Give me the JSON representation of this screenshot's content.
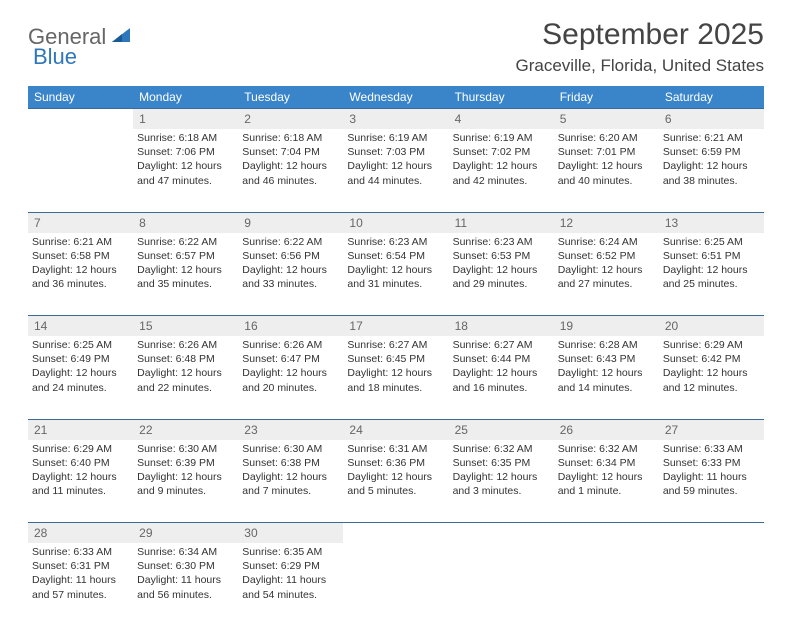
{
  "branding": {
    "logo_text_1": "General",
    "logo_text_2": "Blue",
    "logo_color_1": "#666666",
    "logo_color_2": "#2f77bb"
  },
  "header": {
    "month_title": "September 2025",
    "location": "Graceville, Florida, United States"
  },
  "colors": {
    "header_bg": "#3a85c9",
    "header_fg": "#ffffff",
    "daynum_bg": "#eeeeee",
    "daynum_fg": "#666666",
    "cell_border": "#3a6b96",
    "text": "#333333",
    "background": "#ffffff"
  },
  "typography": {
    "title_fontsize": 30,
    "location_fontsize": 17,
    "dayheader_fontsize": 12,
    "daynum_fontsize": 12,
    "body_fontsize": 10.5,
    "font_family": "Arial"
  },
  "calendar": {
    "type": "table",
    "day_names": [
      "Sunday",
      "Monday",
      "Tuesday",
      "Wednesday",
      "Thursday",
      "Friday",
      "Saturday"
    ],
    "weeks": [
      [
        {
          "day": "",
          "sunrise": "",
          "sunset": "",
          "daylight1": "",
          "daylight2": ""
        },
        {
          "day": "1",
          "sunrise": "Sunrise: 6:18 AM",
          "sunset": "Sunset: 7:06 PM",
          "daylight1": "Daylight: 12 hours",
          "daylight2": "and 47 minutes."
        },
        {
          "day": "2",
          "sunrise": "Sunrise: 6:18 AM",
          "sunset": "Sunset: 7:04 PM",
          "daylight1": "Daylight: 12 hours",
          "daylight2": "and 46 minutes."
        },
        {
          "day": "3",
          "sunrise": "Sunrise: 6:19 AM",
          "sunset": "Sunset: 7:03 PM",
          "daylight1": "Daylight: 12 hours",
          "daylight2": "and 44 minutes."
        },
        {
          "day": "4",
          "sunrise": "Sunrise: 6:19 AM",
          "sunset": "Sunset: 7:02 PM",
          "daylight1": "Daylight: 12 hours",
          "daylight2": "and 42 minutes."
        },
        {
          "day": "5",
          "sunrise": "Sunrise: 6:20 AM",
          "sunset": "Sunset: 7:01 PM",
          "daylight1": "Daylight: 12 hours",
          "daylight2": "and 40 minutes."
        },
        {
          "day": "6",
          "sunrise": "Sunrise: 6:21 AM",
          "sunset": "Sunset: 6:59 PM",
          "daylight1": "Daylight: 12 hours",
          "daylight2": "and 38 minutes."
        }
      ],
      [
        {
          "day": "7",
          "sunrise": "Sunrise: 6:21 AM",
          "sunset": "Sunset: 6:58 PM",
          "daylight1": "Daylight: 12 hours",
          "daylight2": "and 36 minutes."
        },
        {
          "day": "8",
          "sunrise": "Sunrise: 6:22 AM",
          "sunset": "Sunset: 6:57 PM",
          "daylight1": "Daylight: 12 hours",
          "daylight2": "and 35 minutes."
        },
        {
          "day": "9",
          "sunrise": "Sunrise: 6:22 AM",
          "sunset": "Sunset: 6:56 PM",
          "daylight1": "Daylight: 12 hours",
          "daylight2": "and 33 minutes."
        },
        {
          "day": "10",
          "sunrise": "Sunrise: 6:23 AM",
          "sunset": "Sunset: 6:54 PM",
          "daylight1": "Daylight: 12 hours",
          "daylight2": "and 31 minutes."
        },
        {
          "day": "11",
          "sunrise": "Sunrise: 6:23 AM",
          "sunset": "Sunset: 6:53 PM",
          "daylight1": "Daylight: 12 hours",
          "daylight2": "and 29 minutes."
        },
        {
          "day": "12",
          "sunrise": "Sunrise: 6:24 AM",
          "sunset": "Sunset: 6:52 PM",
          "daylight1": "Daylight: 12 hours",
          "daylight2": "and 27 minutes."
        },
        {
          "day": "13",
          "sunrise": "Sunrise: 6:25 AM",
          "sunset": "Sunset: 6:51 PM",
          "daylight1": "Daylight: 12 hours",
          "daylight2": "and 25 minutes."
        }
      ],
      [
        {
          "day": "14",
          "sunrise": "Sunrise: 6:25 AM",
          "sunset": "Sunset: 6:49 PM",
          "daylight1": "Daylight: 12 hours",
          "daylight2": "and 24 minutes."
        },
        {
          "day": "15",
          "sunrise": "Sunrise: 6:26 AM",
          "sunset": "Sunset: 6:48 PM",
          "daylight1": "Daylight: 12 hours",
          "daylight2": "and 22 minutes."
        },
        {
          "day": "16",
          "sunrise": "Sunrise: 6:26 AM",
          "sunset": "Sunset: 6:47 PM",
          "daylight1": "Daylight: 12 hours",
          "daylight2": "and 20 minutes."
        },
        {
          "day": "17",
          "sunrise": "Sunrise: 6:27 AM",
          "sunset": "Sunset: 6:45 PM",
          "daylight1": "Daylight: 12 hours",
          "daylight2": "and 18 minutes."
        },
        {
          "day": "18",
          "sunrise": "Sunrise: 6:27 AM",
          "sunset": "Sunset: 6:44 PM",
          "daylight1": "Daylight: 12 hours",
          "daylight2": "and 16 minutes."
        },
        {
          "day": "19",
          "sunrise": "Sunrise: 6:28 AM",
          "sunset": "Sunset: 6:43 PM",
          "daylight1": "Daylight: 12 hours",
          "daylight2": "and 14 minutes."
        },
        {
          "day": "20",
          "sunrise": "Sunrise: 6:29 AM",
          "sunset": "Sunset: 6:42 PM",
          "daylight1": "Daylight: 12 hours",
          "daylight2": "and 12 minutes."
        }
      ],
      [
        {
          "day": "21",
          "sunrise": "Sunrise: 6:29 AM",
          "sunset": "Sunset: 6:40 PM",
          "daylight1": "Daylight: 12 hours",
          "daylight2": "and 11 minutes."
        },
        {
          "day": "22",
          "sunrise": "Sunrise: 6:30 AM",
          "sunset": "Sunset: 6:39 PM",
          "daylight1": "Daylight: 12 hours",
          "daylight2": "and 9 minutes."
        },
        {
          "day": "23",
          "sunrise": "Sunrise: 6:30 AM",
          "sunset": "Sunset: 6:38 PM",
          "daylight1": "Daylight: 12 hours",
          "daylight2": "and 7 minutes."
        },
        {
          "day": "24",
          "sunrise": "Sunrise: 6:31 AM",
          "sunset": "Sunset: 6:36 PM",
          "daylight1": "Daylight: 12 hours",
          "daylight2": "and 5 minutes."
        },
        {
          "day": "25",
          "sunrise": "Sunrise: 6:32 AM",
          "sunset": "Sunset: 6:35 PM",
          "daylight1": "Daylight: 12 hours",
          "daylight2": "and 3 minutes."
        },
        {
          "day": "26",
          "sunrise": "Sunrise: 6:32 AM",
          "sunset": "Sunset: 6:34 PM",
          "daylight1": "Daylight: 12 hours",
          "daylight2": "and 1 minute."
        },
        {
          "day": "27",
          "sunrise": "Sunrise: 6:33 AM",
          "sunset": "Sunset: 6:33 PM",
          "daylight1": "Daylight: 11 hours",
          "daylight2": "and 59 minutes."
        }
      ],
      [
        {
          "day": "28",
          "sunrise": "Sunrise: 6:33 AM",
          "sunset": "Sunset: 6:31 PM",
          "daylight1": "Daylight: 11 hours",
          "daylight2": "and 57 minutes."
        },
        {
          "day": "29",
          "sunrise": "Sunrise: 6:34 AM",
          "sunset": "Sunset: 6:30 PM",
          "daylight1": "Daylight: 11 hours",
          "daylight2": "and 56 minutes."
        },
        {
          "day": "30",
          "sunrise": "Sunrise: 6:35 AM",
          "sunset": "Sunset: 6:29 PM",
          "daylight1": "Daylight: 11 hours",
          "daylight2": "and 54 minutes."
        },
        {
          "day": "",
          "sunrise": "",
          "sunset": "",
          "daylight1": "",
          "daylight2": ""
        },
        {
          "day": "",
          "sunrise": "",
          "sunset": "",
          "daylight1": "",
          "daylight2": ""
        },
        {
          "day": "",
          "sunrise": "",
          "sunset": "",
          "daylight1": "",
          "daylight2": ""
        },
        {
          "day": "",
          "sunrise": "",
          "sunset": "",
          "daylight1": "",
          "daylight2": ""
        }
      ]
    ]
  }
}
